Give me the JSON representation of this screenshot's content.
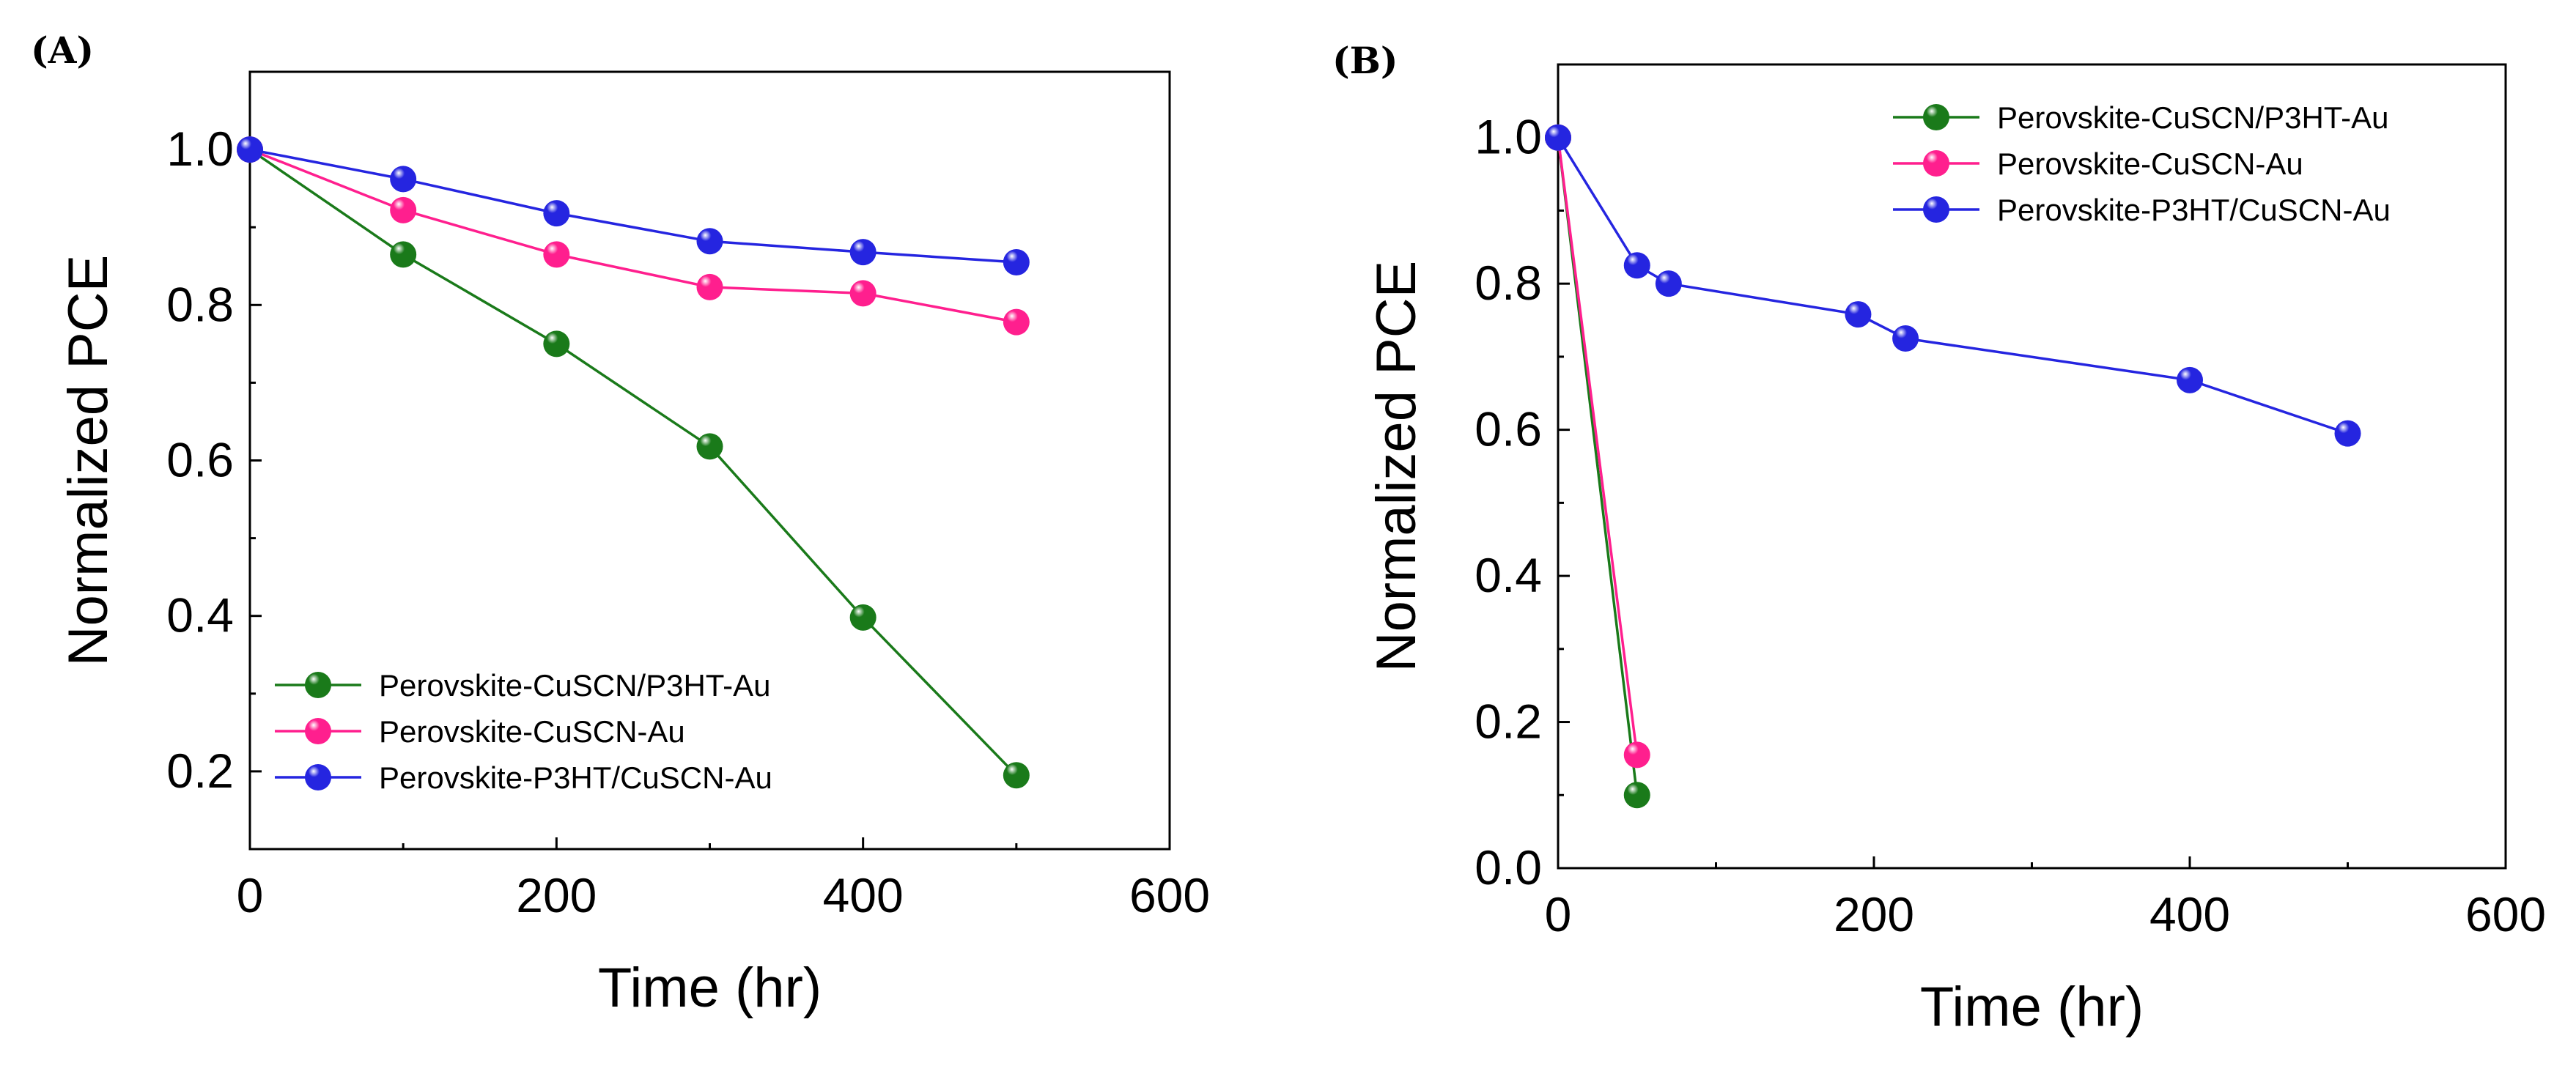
{
  "chart_data": [
    {
      "panel_label": "(A)",
      "type": "line",
      "xlabel": "Time (hr)",
      "ylabel": "Normalized PCE",
      "xlim": [
        0,
        600
      ],
      "ylim": [
        0.1,
        1.1
      ],
      "xticks": [
        "0",
        "200",
        "400",
        "600"
      ],
      "yticks": [
        "0.2",
        "0.4",
        "0.6",
        "0.8",
        "1.0"
      ],
      "legend_position": "bottom-left",
      "grid": false,
      "series": [
        {
          "name": "Perovskite-CuSCN/P3HT-Au",
          "color": "#1a7a1a",
          "x": [
            0,
            100,
            200,
            300,
            400,
            500
          ],
          "y": [
            1.0,
            0.865,
            0.75,
            0.618,
            0.398,
            0.195
          ]
        },
        {
          "name": "Perovskite-CuSCN-Au",
          "color": "#ff1f8e",
          "x": [
            0,
            100,
            200,
            300,
            400,
            500
          ],
          "y": [
            1.0,
            0.922,
            0.865,
            0.823,
            0.815,
            0.778
          ]
        },
        {
          "name": "Perovskite-P3HT/CuSCN-Au",
          "color": "#2525e0",
          "x": [
            0,
            100,
            200,
            300,
            400,
            500
          ],
          "y": [
            1.0,
            0.962,
            0.918,
            0.882,
            0.868,
            0.855
          ]
        }
      ]
    },
    {
      "panel_label": "(B)",
      "type": "line",
      "xlabel": "Time (hr)",
      "ylabel": "Normalized PCE",
      "xlim": [
        0,
        600
      ],
      "ylim": [
        0,
        1.1
      ],
      "xticks": [
        "0",
        "200",
        "400",
        "600"
      ],
      "yticks": [
        "0.0",
        "0.2",
        "0.4",
        "0.6",
        "0.8",
        "1.0"
      ],
      "legend_position": "top-right",
      "grid": false,
      "series": [
        {
          "name": "Perovskite-CuSCN/P3HT-Au",
          "color": "#1a7a1a",
          "x": [
            0,
            50
          ],
          "y": [
            1.0,
            0.1
          ]
        },
        {
          "name": "Perovskite-CuSCN-Au",
          "color": "#ff1f8e",
          "x": [
            0,
            50
          ],
          "y": [
            1.0,
            0.155
          ]
        },
        {
          "name": "Perovskite-P3HT/CuSCN-Au",
          "color": "#2525e0",
          "x": [
            0,
            50,
            70,
            190,
            220,
            400,
            500
          ],
          "y": [
            1.0,
            0.825,
            0.8,
            0.758,
            0.725,
            0.668,
            0.595
          ]
        }
      ]
    }
  ]
}
